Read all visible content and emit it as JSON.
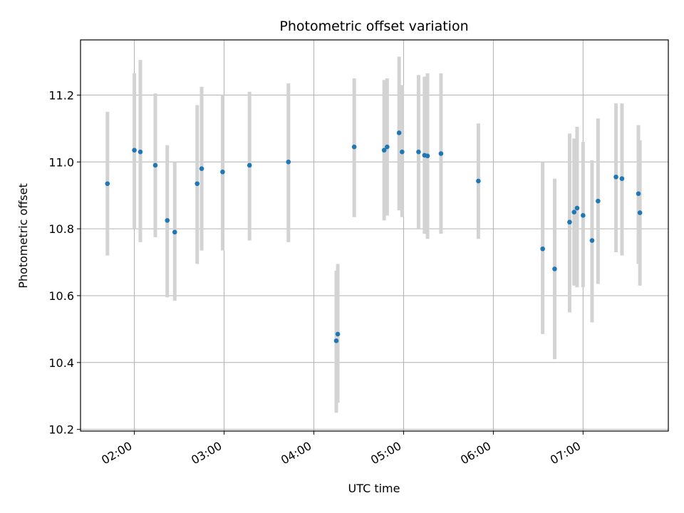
{
  "chart_data": {
    "type": "scatter",
    "title": "Photometric offset variation",
    "xlabel": "UTC time",
    "ylabel": "Photometric offset",
    "grid": true,
    "xlim": [
      "01:24",
      "07:57"
    ],
    "ylim": [
      10.195,
      11.365
    ],
    "x_ticks": [
      "02:00",
      "03:00",
      "04:00",
      "05:00",
      "06:00",
      "07:00"
    ],
    "y_ticks": [
      10.2,
      10.4,
      10.6,
      10.8,
      11.0,
      11.2
    ],
    "y_tick_labels": [
      "10.2",
      "10.4",
      "10.6",
      "10.8",
      "11.0",
      "11.2"
    ],
    "colors": {
      "points": "#1f77b4",
      "error_bars": "#d3d3d3",
      "grid": "#b0b0b0"
    },
    "series": [
      {
        "x": [
          "01:42",
          "02:00",
          "02:04",
          "02:14",
          "02:22",
          "02:27",
          "02:42",
          "02:45",
          "02:59",
          "03:17",
          "03:43",
          "04:15",
          "04:16",
          "04:27",
          "04:47",
          "04:49",
          "04:57",
          "04:59",
          "05:10",
          "05:14",
          "05:16",
          "05:25",
          "05:50",
          "06:33",
          "06:41",
          "06:51",
          "06:54",
          "06:56",
          "07:00",
          "07:06",
          "07:10",
          "07:22",
          "07:26",
          "07:37",
          "07:38"
        ],
        "y": [
          10.935,
          11.035,
          11.03,
          10.99,
          10.825,
          10.79,
          10.935,
          10.98,
          10.97,
          10.99,
          11.0,
          10.465,
          10.485,
          11.045,
          11.035,
          11.045,
          11.087,
          11.03,
          11.03,
          11.02,
          11.018,
          11.025,
          10.943,
          10.74,
          10.68,
          10.82,
          10.85,
          10.862,
          10.84,
          10.765,
          10.883,
          10.955,
          10.95,
          10.905,
          10.848
        ],
        "yerr_low": [
          10.72,
          10.8,
          10.76,
          10.775,
          10.595,
          10.585,
          10.695,
          10.735,
          10.735,
          10.765,
          10.76,
          10.25,
          10.28,
          10.835,
          10.825,
          10.84,
          10.855,
          10.835,
          10.8,
          10.785,
          10.77,
          10.785,
          10.77,
          10.485,
          10.41,
          10.55,
          10.63,
          10.625,
          10.625,
          10.52,
          10.635,
          10.73,
          10.72,
          10.695,
          10.63
        ],
        "yerr_high": [
          11.15,
          11.265,
          11.305,
          11.205,
          11.05,
          11.0,
          11.17,
          11.225,
          11.2,
          11.21,
          11.235,
          10.675,
          10.695,
          11.25,
          11.245,
          11.25,
          11.315,
          11.23,
          11.26,
          11.255,
          11.265,
          11.265,
          11.115,
          11.0,
          10.95,
          11.085,
          11.07,
          11.105,
          11.06,
          11.005,
          11.13,
          11.175,
          11.175,
          11.11,
          11.065
        ]
      }
    ]
  }
}
